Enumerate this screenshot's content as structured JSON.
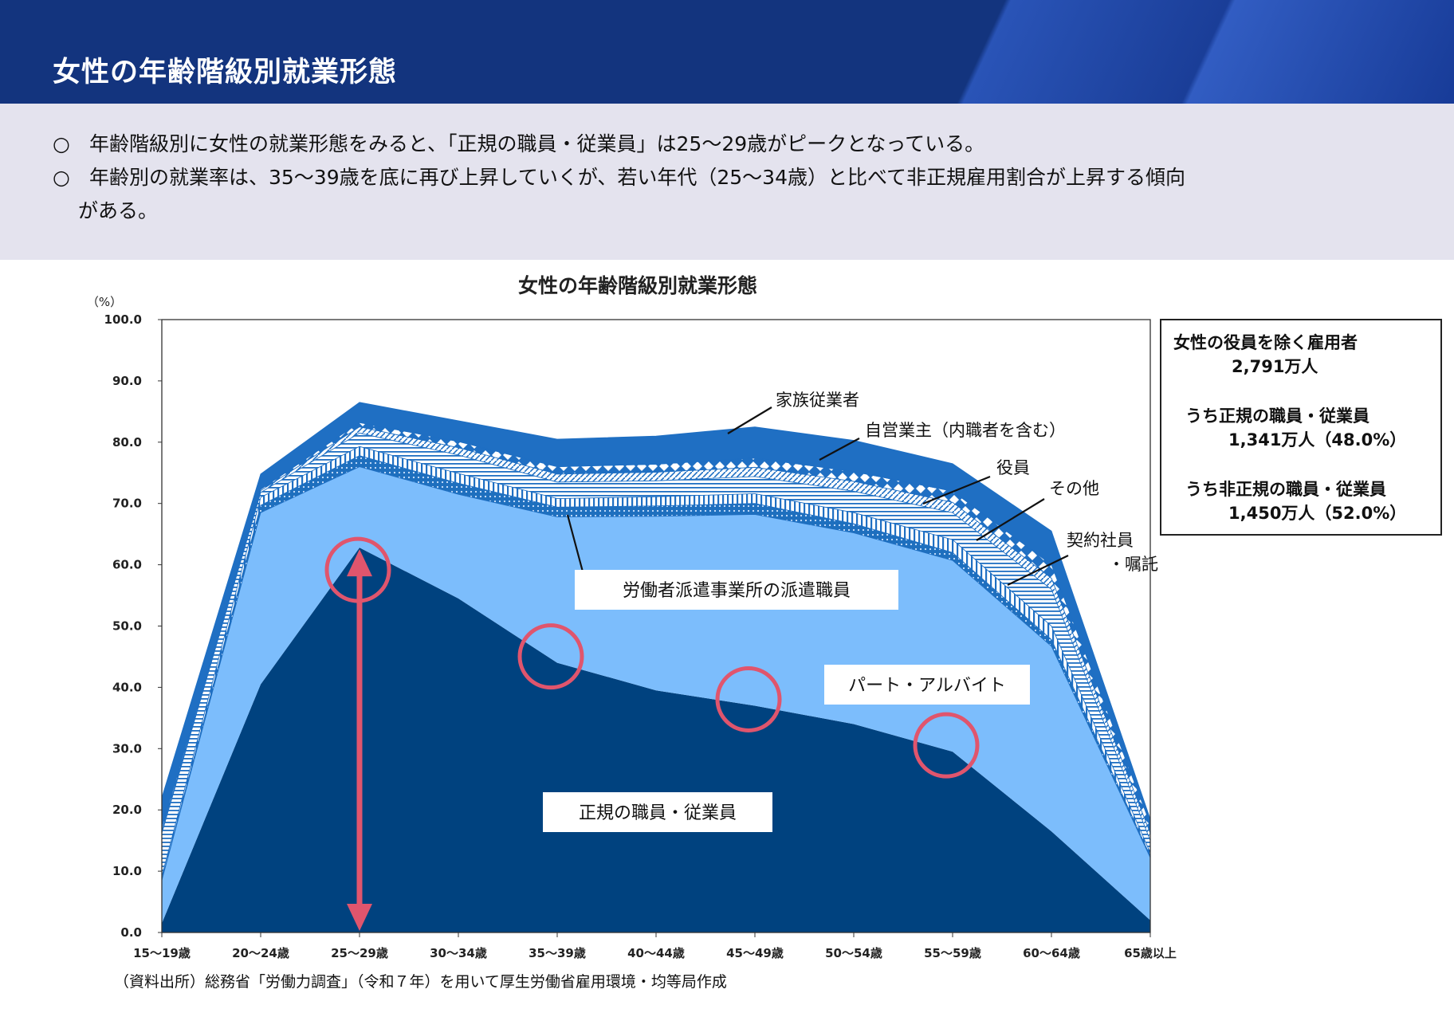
{
  "header": {
    "title": "女性の年齢階級別就業形態"
  },
  "summary": {
    "marker": "○",
    "line1": "年齢階級別に女性の就業形態をみると、「正規の職員・従業員」は25～29歳がピークとなっている。",
    "line2": "年齢別の就業率は、35～39歳を底に再び上昇していくが、若い年代（25～34歳）と比べて非正規雇用割合が上昇する傾向",
    "line2_cont": "がある。"
  },
  "legend_box": {
    "total_label": "女性の役員を除く雇用者",
    "total_value": "2,791万人",
    "regular_label": "うち正規の職員・従業員",
    "regular_value": "1,341万人（48.0%）",
    "nonregular_label": "うち非正規の職員・従業員",
    "nonregular_value": "1,450万人（52.0%）"
  },
  "source_note": "（資料出所）総務省「労働力調査」（令和７年）を用いて厚生労働省雇用環境・均等局作成",
  "colors": {
    "regular": "#00427f",
    "part": "#7cbdfc",
    "dispatch": "#1e6fbe",
    "family": "#1f6fc3",
    "highlight": "#e0556d"
  },
  "chart_data": {
    "type": "area",
    "title": "女性の年齢階級別就業形態",
    "unit": "（%）",
    "ylim": [
      0,
      100
    ],
    "yticks": [
      "0.0",
      "10.0",
      "20.0",
      "30.0",
      "40.0",
      "50.0",
      "60.0",
      "70.0",
      "80.0",
      "90.0",
      "100.0"
    ],
    "categories": [
      "15～19歳",
      "20～24歳",
      "25～29歳",
      "30～34歳",
      "35～39歳",
      "40～44歳",
      "45～49歳",
      "50～54歳",
      "55～59歳",
      "60～64歳",
      "65歳以上"
    ],
    "series": [
      {
        "name": "正規の職員・従業員",
        "values": [
          1.5,
          40.5,
          62.8,
          54.5,
          44.0,
          39.5,
          37.0,
          34.0,
          29.5,
          16.5,
          2.0
        ]
      },
      {
        "name": "パート・アルバイト",
        "values": [
          7.0,
          28.0,
          13.2,
          17.0,
          23.8,
          28.4,
          31.2,
          31.2,
          31.2,
          30.2,
          10.2
        ]
      },
      {
        "name": "労働者派遣事業所の派遣職員",
        "values": [
          0.2,
          1.2,
          1.8,
          1.8,
          1.6,
          1.7,
          1.8,
          1.5,
          1.3,
          1.1,
          0.3
        ]
      },
      {
        "name": "契約社員・嘱託",
        "values": [
          0.5,
          1.3,
          1.5,
          1.6,
          1.4,
          1.5,
          1.6,
          1.8,
          2.1,
          2.2,
          0.5
        ]
      },
      {
        "name": "その他",
        "values": [
          7.0,
          0.8,
          2.2,
          3.0,
          2.7,
          2.6,
          2.8,
          3.5,
          4.4,
          6.0,
          2.0
        ]
      },
      {
        "name": "役員",
        "values": [
          0.4,
          0.3,
          1.0,
          1.2,
          1.3,
          1.4,
          1.5,
          1.6,
          1.7,
          1.8,
          1.2
        ]
      },
      {
        "name": "自営業主（内職者を含む）",
        "values": [
          0.5,
          0.2,
          0.7,
          1.0,
          1.2,
          1.3,
          1.5,
          1.6,
          1.8,
          2.2,
          1.5
        ]
      },
      {
        "name": "家族従業者",
        "values": [
          4.9,
          2.5,
          3.3,
          3.4,
          4.5,
          4.6,
          5.1,
          5.1,
          4.5,
          5.5,
          0.8
        ]
      }
    ],
    "annotations": [
      "家族従業者",
      "自営業主（内職者を含む）",
      "役員",
      "その他",
      "契約社員",
      "・嘱託"
    ],
    "boxed_labels": [
      "労働者派遣事業所の派遣職員",
      "パート・アルバイト",
      "正規の職員・従業員"
    ],
    "highlighted_categories": [
      "25～29歳",
      "35～39歳",
      "45～49歳",
      "55～59歳"
    ]
  }
}
